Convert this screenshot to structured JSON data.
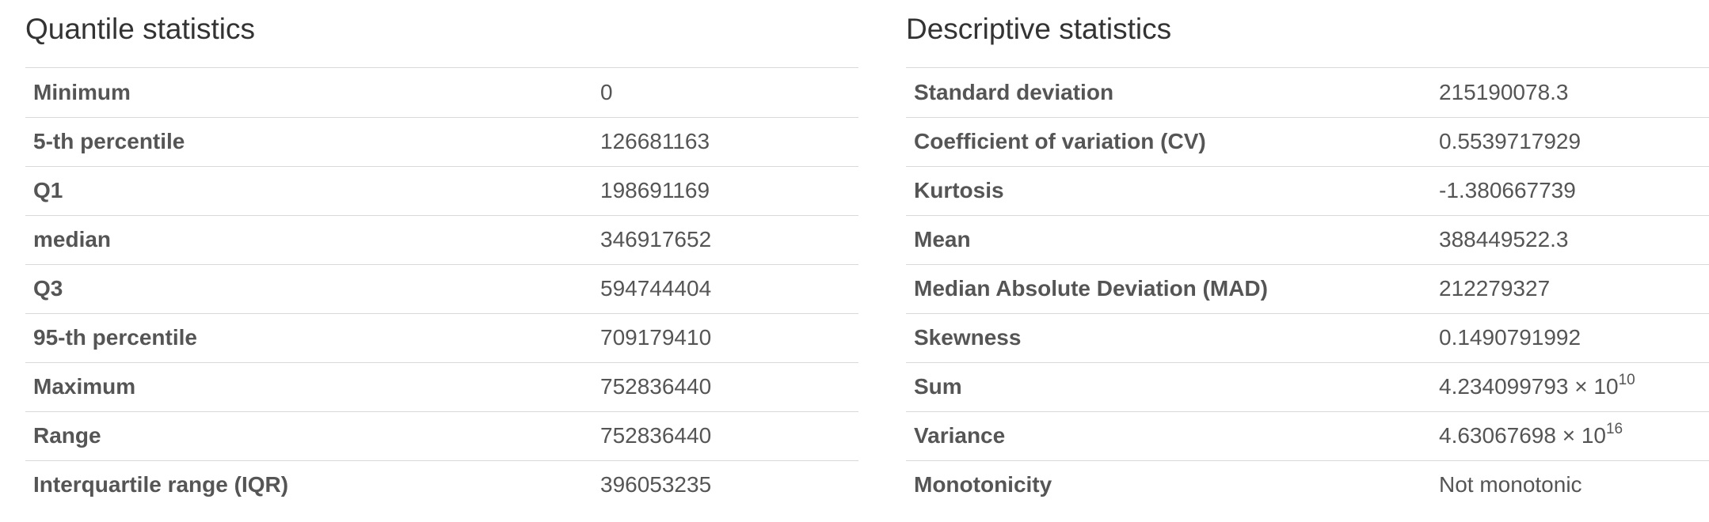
{
  "quantile": {
    "title": "Quantile statistics",
    "rows": [
      {
        "label": "Minimum",
        "value": "0"
      },
      {
        "label": "5-th percentile",
        "value": "126681163"
      },
      {
        "label": "Q1",
        "value": "198691169"
      },
      {
        "label": "median",
        "value": "346917652"
      },
      {
        "label": "Q3",
        "value": "594744404"
      },
      {
        "label": "95-th percentile",
        "value": "709179410"
      },
      {
        "label": "Maximum",
        "value": "752836440"
      },
      {
        "label": "Range",
        "value": "752836440"
      },
      {
        "label": "Interquartile range (IQR)",
        "value": "396053235"
      }
    ]
  },
  "descriptive": {
    "title": "Descriptive statistics",
    "rows": [
      {
        "label": "Standard deviation",
        "value": "215190078.3"
      },
      {
        "label": "Coefficient of variation (CV)",
        "value": "0.5539717929"
      },
      {
        "label": "Kurtosis",
        "value": "-1.380667739"
      },
      {
        "label": "Mean",
        "value": "388449522.3"
      },
      {
        "label": "Median Absolute Deviation (MAD)",
        "value": "212279327"
      },
      {
        "label": "Skewness",
        "value": "0.1490791992"
      },
      {
        "label": "Sum",
        "value": "4.234099793 × 10",
        "exponent": "10"
      },
      {
        "label": "Variance",
        "value": "4.63067698 × 10",
        "exponent": "16"
      },
      {
        "label": "Monotonicity",
        "value": "Not monotonic"
      }
    ]
  }
}
